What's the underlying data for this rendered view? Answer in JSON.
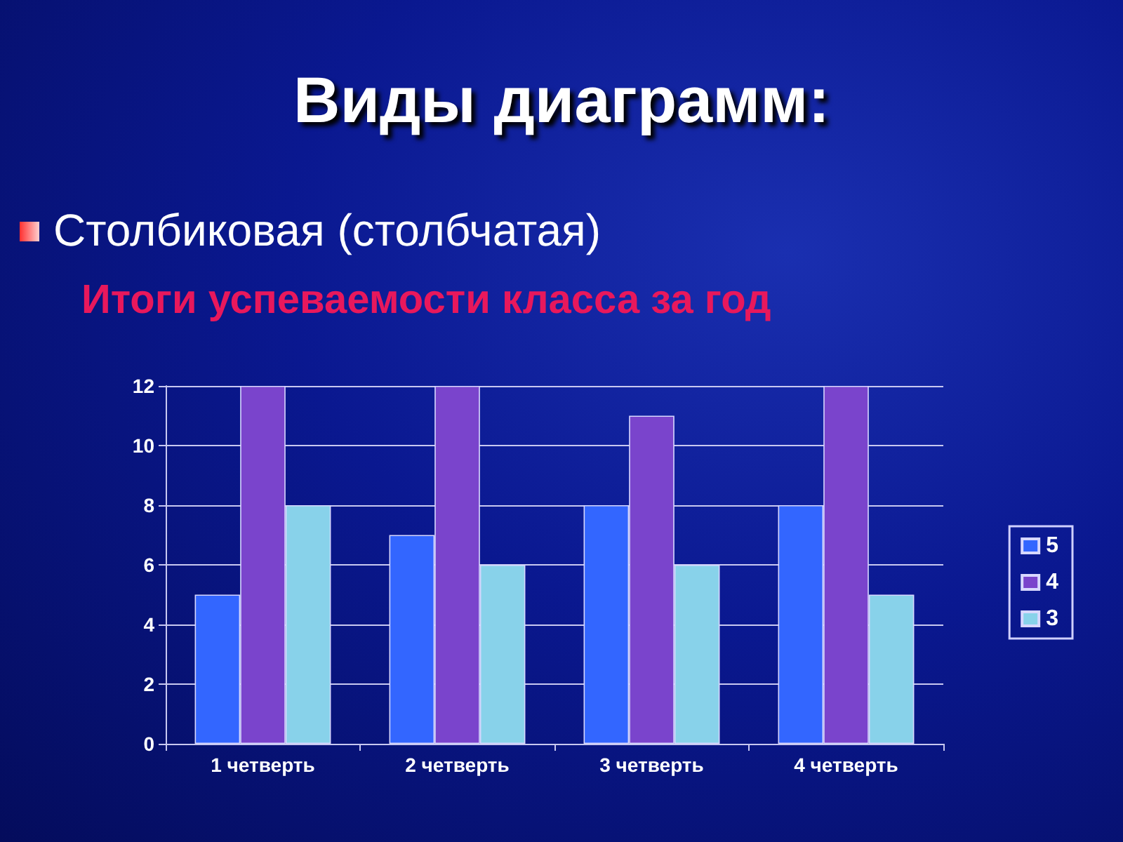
{
  "chart_data": {
    "type": "bar",
    "title": "Виды диаграмм:",
    "subtitle": "Столбиковая (столбчатая)",
    "annotations": [
      "Итоги успеваемости класса за год"
    ],
    "categories": [
      "1 четверть",
      "2 четверть",
      "3 четверть",
      "4 четверть"
    ],
    "series": [
      {
        "name": "5",
        "color": "#3366ff",
        "values": [
          5,
          7,
          8,
          8
        ]
      },
      {
        "name": "4",
        "color": "#7a44cc",
        "values": [
          12,
          12,
          11,
          12
        ]
      },
      {
        "name": "3",
        "color": "#88d2ea",
        "values": [
          8,
          6,
          6,
          5
        ]
      }
    ],
    "ylim": [
      0,
      12
    ],
    "yticks": [
      0,
      2,
      4,
      6,
      8,
      10,
      12
    ],
    "grid": "y",
    "legend": "right"
  }
}
